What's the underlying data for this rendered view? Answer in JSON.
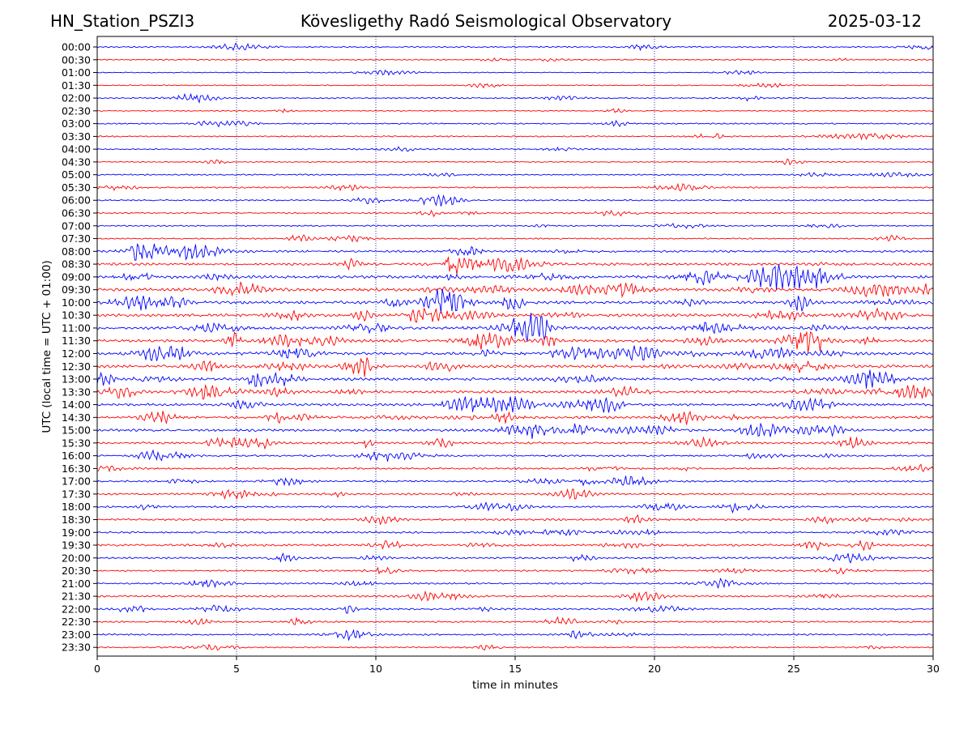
{
  "header": {
    "station": "HN_Station_PSZI3",
    "observatory": "Kövesligethy Radó Seismological Observatory",
    "date": "2025-03-12"
  },
  "chart_data": {
    "type": "line",
    "title": "Kövesligethy Radó Seismological Observatory",
    "xlabel": "time in minutes",
    "ylabel": "UTC (local time = UTC + 01:00)",
    "xlim": [
      0,
      30
    ],
    "xticks": [
      0,
      5,
      10,
      15,
      20,
      25,
      30
    ],
    "grid": "vertical dotted lines at 5, 10, 15, 20, 25 minutes",
    "colors": {
      "even_row": "#0000ff",
      "odd_row": "#ff0000",
      "grid": "#000080"
    },
    "rows": [
      "00:00",
      "00:30",
      "01:00",
      "01:30",
      "02:00",
      "02:30",
      "03:00",
      "03:30",
      "04:00",
      "04:30",
      "05:00",
      "05:30",
      "06:00",
      "06:30",
      "07:00",
      "07:30",
      "08:00",
      "08:30",
      "09:00",
      "09:30",
      "10:00",
      "10:30",
      "11:00",
      "11:30",
      "12:00",
      "12:30",
      "13:00",
      "13:30",
      "14:00",
      "14:30",
      "15:00",
      "15:30",
      "16:00",
      "16:30",
      "17:00",
      "17:30",
      "18:00",
      "18:30",
      "19:00",
      "19:30",
      "20:00",
      "20:30",
      "21:00",
      "21:30",
      "22:00",
      "22:30",
      "23:00",
      "23:30"
    ],
    "activity": [
      1,
      1,
      0.5,
      0.5,
      1,
      0.5,
      1,
      1,
      0.8,
      0.6,
      1,
      1,
      1,
      1,
      1,
      1,
      2,
      2.5,
      3,
      3,
      3,
      3,
      3,
      3,
      3,
      3,
      3,
      2.5,
      2.5,
      2.5,
      2.5,
      2,
      1.5,
      1.5,
      1.5,
      1.5,
      1.5,
      1.8,
      1.5,
      2,
      1.5,
      1.2,
      1.3,
      1.6,
      1.5,
      1.3,
      1.3,
      1
    ]
  }
}
